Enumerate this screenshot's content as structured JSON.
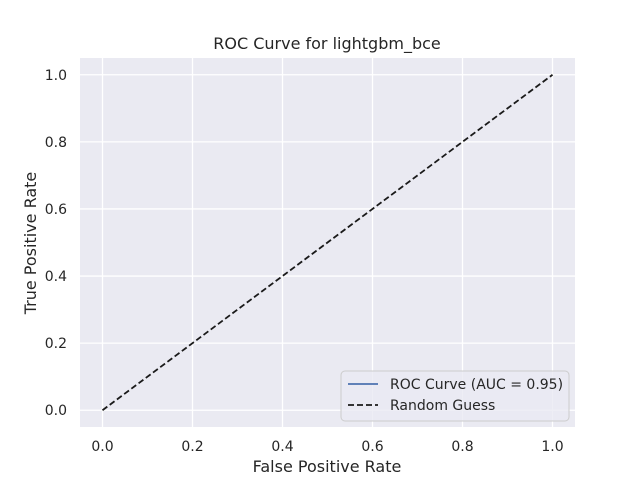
{
  "chart_data": {
    "type": "line",
    "title": "ROC Curve for lightgbm_bce",
    "xlabel": "False Positive Rate",
    "ylabel": "True Positive Rate",
    "xlim": [
      -0.05,
      1.05
    ],
    "ylim": [
      -0.05,
      1.05
    ],
    "xticks": [
      0.0,
      0.2,
      0.4,
      0.6,
      0.8,
      1.0
    ],
    "yticks": [
      0.0,
      0.2,
      0.4,
      0.6,
      0.8,
      1.0
    ],
    "xtick_labels": [
      "0.0",
      "0.2",
      "0.4",
      "0.6",
      "0.8",
      "1.0"
    ],
    "ytick_labels": [
      "0.0",
      "0.2",
      "0.4",
      "0.6",
      "0.8",
      "1.0"
    ],
    "grid": true,
    "legend_position": "lower-right",
    "series": [
      {
        "name": "ROC Curve (AUC = 0.95)",
        "color": "#4c72b0",
        "style": "solid",
        "x": [],
        "y": []
      },
      {
        "name": "Random Guess",
        "color": "#1a1a1a",
        "style": "dashed",
        "x": [
          0,
          1
        ],
        "y": [
          0,
          1
        ]
      }
    ],
    "colors": {
      "plot_background": "#eaeaf2",
      "grid": "#ffffff"
    }
  }
}
